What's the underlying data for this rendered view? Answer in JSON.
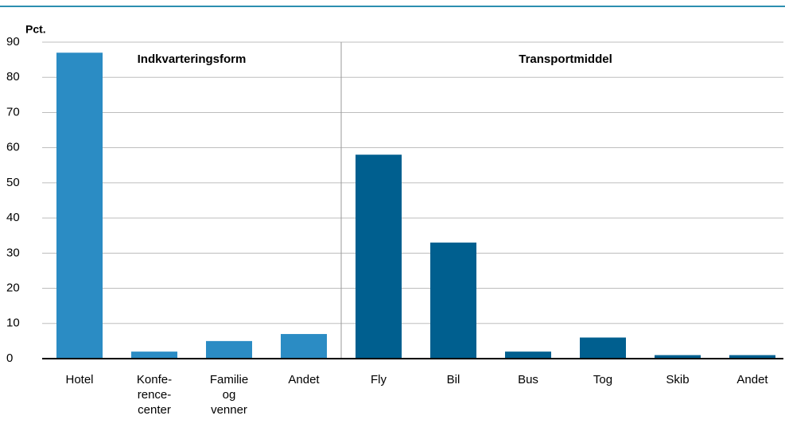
{
  "chart_data": {
    "type": "bar",
    "ylabel": "Pct.",
    "annotations": [
      "Indkvarteringsform",
      "Transportmiddel"
    ],
    "categories": [
      [
        "Hotel"
      ],
      [
        "Konfe-",
        "rence-",
        "center"
      ],
      [
        "Familie",
        "og",
        "venner"
      ],
      [
        "Andet"
      ],
      [
        "Fly"
      ],
      [
        "Bil"
      ],
      [
        "Bus"
      ],
      [
        "Tog"
      ],
      [
        "Skib"
      ],
      [
        "Andet"
      ]
    ],
    "values": [
      87,
      2,
      5,
      7,
      58,
      33,
      2,
      6,
      1,
      1
    ],
    "colors": [
      "#2b8cc4",
      "#2b8cc4",
      "#2b8cc4",
      "#2b8cc4",
      "#005f8f",
      "#005f8f",
      "#005f8f",
      "#005f8f",
      "#005f8f",
      "#005f8f"
    ],
    "ylim": [
      0,
      90
    ],
    "yticks": [
      0,
      10,
      20,
      30,
      40,
      50,
      60,
      70,
      80,
      90
    ],
    "grid": true
  }
}
